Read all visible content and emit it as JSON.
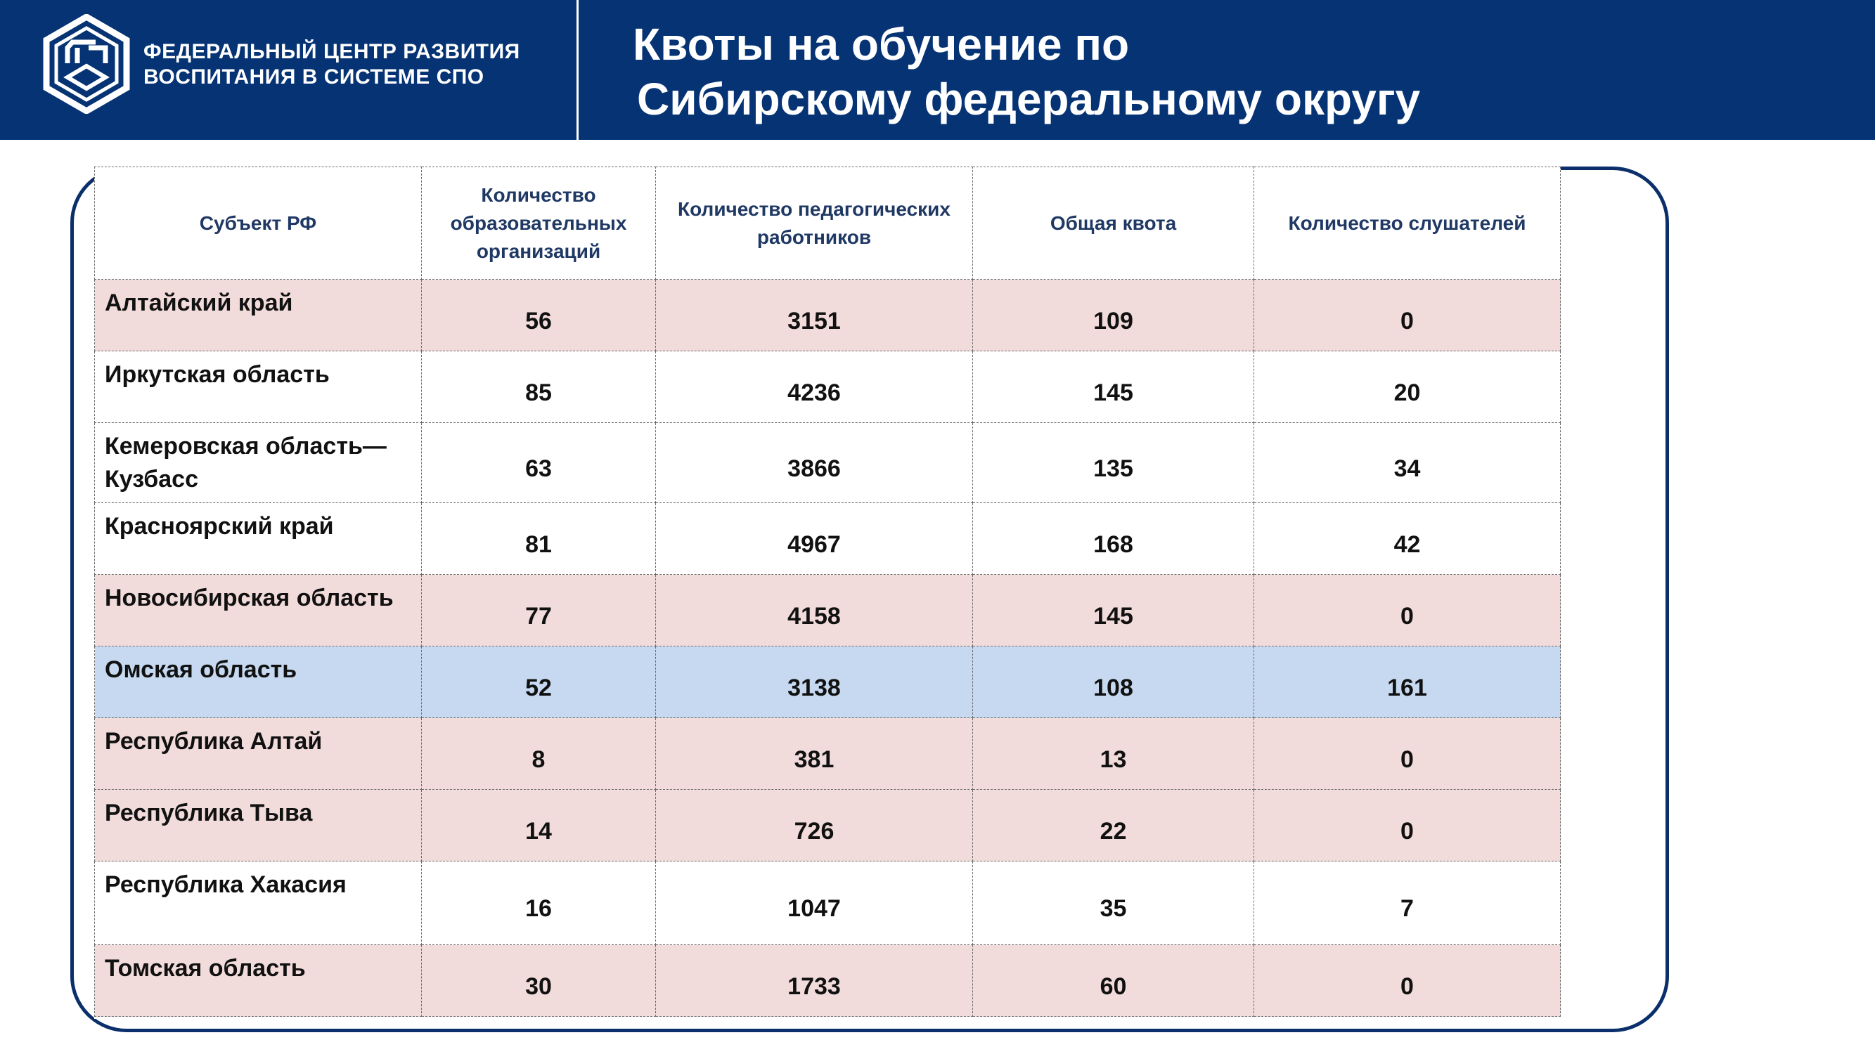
{
  "header": {
    "org_line1": "ФЕДЕРАЛЬНЫЙ ЦЕНТР РАЗВИТИЯ",
    "org_line2": "ВОСПИТАНИЯ В СИСТЕМЕ СПО",
    "title_line1": "Квоты на обучение по",
    "title_line2": "Сибирскому федеральному округу",
    "background_color": "#053374",
    "logo_icon": "fcr-spo-logo-icon"
  },
  "table": {
    "columns": [
      "Субъект РФ",
      "Количество образовательных организаций",
      "Количество педагогических работников",
      "Общая квота",
      "Количество слушателей"
    ],
    "rows": [
      {
        "name": "Алтайский край",
        "orgs": "56",
        "teachers": "3151",
        "quota": "109",
        "listeners": "0",
        "highlight": "pink"
      },
      {
        "name": "Иркутская область",
        "orgs": "85",
        "teachers": "4236",
        "quota": "145",
        "listeners": "20",
        "highlight": "white"
      },
      {
        "name": "Кемеровская область—Кузбасс",
        "orgs": "63",
        "teachers": "3866",
        "quota": "135",
        "listeners": "34",
        "highlight": "white"
      },
      {
        "name": "Красноярский край",
        "orgs": "81",
        "teachers": "4967",
        "quota": "168",
        "listeners": "42",
        "highlight": "white"
      },
      {
        "name": "Новосибирская область",
        "orgs": "77",
        "teachers": "4158",
        "quota": "145",
        "listeners": "0",
        "highlight": "pink"
      },
      {
        "name": "Омская область",
        "orgs": "52",
        "teachers": "3138",
        "quota": "108",
        "listeners": "161",
        "highlight": "blue"
      },
      {
        "name": "Республика Алтай",
        "orgs": "8",
        "teachers": "381",
        "quota": "13",
        "listeners": "0",
        "highlight": "pink"
      },
      {
        "name": "Республика Тыва",
        "orgs": "14",
        "teachers": "726",
        "quota": "22",
        "listeners": "0",
        "highlight": "pink"
      },
      {
        "name": "Республика Хакасия",
        "orgs": "16",
        "teachers": "1047",
        "quota": "35",
        "listeners": "7",
        "highlight": "white"
      },
      {
        "name": "Томская область",
        "orgs": "30",
        "teachers": "1733",
        "quota": "60",
        "listeners": "0",
        "highlight": "pink"
      }
    ],
    "colors": {
      "pink": "#f2dcdb",
      "blue": "#c6d9f0",
      "white": "#ffffff",
      "header_text": "#1f3864",
      "frame": "#0a2f6b"
    }
  }
}
